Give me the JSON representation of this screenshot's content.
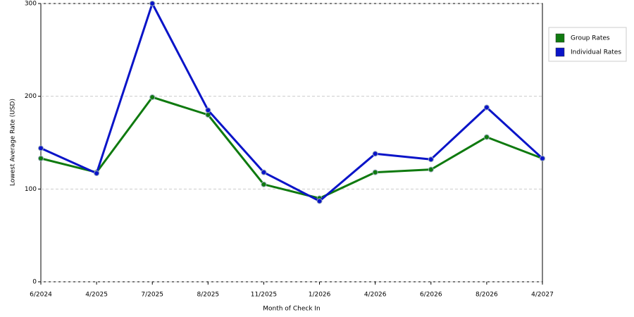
{
  "chart_data": {
    "type": "line",
    "x_label": "Month of Check In",
    "y_label": "Lowest Average Rate (USD)",
    "categories": [
      "6/2024",
      "4/2025",
      "7/2025",
      "8/2025",
      "11/2025",
      "1/2026",
      "4/2026",
      "6/2026",
      "8/2026",
      "4/2027"
    ],
    "series": [
      {
        "name": "Group Rates",
        "color": "#0f7a0f",
        "values": [
          133,
          118,
          199,
          180,
          105,
          90,
          118,
          121,
          156,
          133
        ]
      },
      {
        "name": "Individual Rates",
        "color": "#0a14c8",
        "values": [
          144,
          117,
          300,
          185,
          118,
          87,
          138,
          132,
          188,
          133
        ]
      }
    ],
    "ylim": [
      0,
      300
    ],
    "yticks": [
      0,
      100,
      200,
      300
    ],
    "grid": true,
    "legend": "right"
  }
}
